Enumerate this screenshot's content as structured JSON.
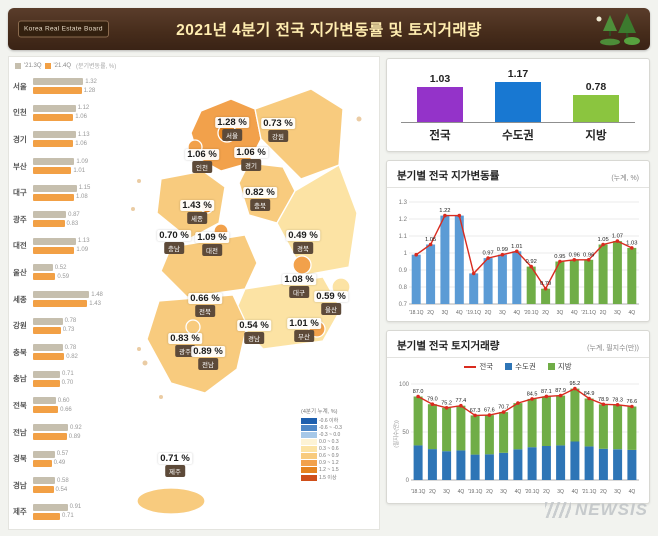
{
  "header": {
    "badge": "Korea Real Estate Board",
    "title": "2021년 4분기 전국 지가변동률 및 토지거래량"
  },
  "watermark": "NEWSIS",
  "chart_data": [
    {
      "id": "regional_quarterly_bars",
      "type": "bar",
      "orientation": "horizontal",
      "unit_note": "(분기변동률, %)",
      "categories": [
        "서울",
        "인천",
        "경기",
        "부산",
        "대구",
        "광주",
        "대전",
        "울산",
        "세종",
        "강원",
        "충북",
        "충남",
        "전북",
        "전남",
        "경북",
        "경남",
        "제주"
      ],
      "series": [
        {
          "name": "'21.3Q",
          "color": "#c6bfae",
          "values": [
            1.32,
            1.12,
            1.13,
            1.09,
            1.15,
            0.87,
            1.13,
            0.52,
            1.48,
            0.78,
            0.78,
            0.71,
            0.6,
            0.92,
            0.57,
            0.58,
            0.91
          ]
        },
        {
          "name": "'21.4Q",
          "color": "#f2a045",
          "values": [
            1.28,
            1.06,
            1.06,
            1.01,
            1.08,
            0.83,
            1.09,
            0.59,
            1.43,
            0.73,
            0.82,
            0.7,
            0.66,
            0.89,
            0.49,
            0.54,
            0.71
          ]
        }
      ]
    },
    {
      "id": "korea_choropleth",
      "type": "heatmap",
      "title": "(4분기 누계, %)",
      "regions": [
        {
          "name": "서울",
          "value": 1.28,
          "color": "#e5831f"
        },
        {
          "name": "인천",
          "value": 1.06,
          "color": "#f2a14b"
        },
        {
          "name": "경기",
          "value": 1.06,
          "color": "#f2a14b"
        },
        {
          "name": "부산",
          "value": 1.01,
          "color": "#f2a14b"
        },
        {
          "name": "대구",
          "value": 1.08,
          "color": "#f2a14b"
        },
        {
          "name": "광주",
          "value": 0.83,
          "color": "#f8cb7e"
        },
        {
          "name": "대전",
          "value": 1.09,
          "color": "#f2a14b"
        },
        {
          "name": "울산",
          "value": 0.59,
          "color": "#fce3a4"
        },
        {
          "name": "세종",
          "value": 1.43,
          "color": "#e5831f"
        },
        {
          "name": "강원",
          "value": 0.73,
          "color": "#f8cb7e"
        },
        {
          "name": "충북",
          "value": 0.82,
          "color": "#f8cb7e"
        },
        {
          "name": "충남",
          "value": 0.7,
          "color": "#f8cb7e"
        },
        {
          "name": "전북",
          "value": 0.66,
          "color": "#f8cb7e"
        },
        {
          "name": "전남",
          "value": 0.89,
          "color": "#f8cb7e"
        },
        {
          "name": "경북",
          "value": 0.49,
          "color": "#fce3a4"
        },
        {
          "name": "경남",
          "value": 0.54,
          "color": "#fce3a4"
        },
        {
          "name": "제주",
          "value": 0.71,
          "color": "#f8cb7e"
        }
      ],
      "legend_items": [
        {
          "label": "-0.6 이하",
          "color": "#1d5fae"
        },
        {
          "label": "-0.6 ~ -0.3",
          "color": "#4d87c7"
        },
        {
          "label": "-0.3 ~ 0.0",
          "color": "#a6c8e8"
        },
        {
          "label": "0.0 ~ 0.3",
          "color": "#fdf3d5"
        },
        {
          "label": "0.3 ~ 0.6",
          "color": "#fce3a4"
        },
        {
          "label": "0.6 ~ 0.9",
          "color": "#f8cb7e"
        },
        {
          "label": "0.9 ~ 1.2",
          "color": "#f2a14b"
        },
        {
          "label": "1.2 ~ 1.5",
          "color": "#e5831f"
        },
        {
          "label": "1.5 이상",
          "color": "#cf4f1a"
        }
      ]
    },
    {
      "id": "summary_bars",
      "type": "bar",
      "categories": [
        "전국",
        "수도권",
        "지방"
      ],
      "values": [
        1.03,
        1.17,
        0.78
      ],
      "colors": [
        "#9433c9",
        "#1878d2",
        "#8bc53f"
      ]
    },
    {
      "id": "quarterly_rate",
      "type": "line",
      "title": "분기별 전국 지가변동률",
      "unit": "(누계, %)",
      "x": [
        "'18.1Q",
        "2Q",
        "3Q",
        "4Q",
        "'19.1Q",
        "2Q",
        "3Q",
        "4Q",
        "'20.1Q",
        "2Q",
        "3Q",
        "4Q",
        "'21.1Q",
        "2Q",
        "3Q",
        "4Q"
      ],
      "values": [
        0.99,
        1.05,
        1.22,
        1.22,
        0.88,
        0.97,
        0.99,
        1.01,
        0.92,
        0.79,
        0.95,
        0.96,
        0.96,
        1.05,
        1.07,
        1.03
      ],
      "point_labels": [
        "",
        "1.05",
        "1.22",
        "",
        "",
        "0.97",
        "0.99",
        "1.01",
        "0.92",
        "0.79",
        "0.95",
        "0.96",
        "0.96",
        "1.05",
        "1.07",
        "1.03"
      ],
      "line_color": "#d92b1f",
      "bar_colors": [
        "#5b9bd5",
        "#5b9bd5",
        "#5b9bd5",
        "#5b9bd5",
        "#5b9bd5",
        "#5b9bd5",
        "#5b9bd5",
        "#5b9bd5",
        "#70ad47",
        "#70ad47",
        "#70ad47",
        "#70ad47",
        "#70ad47",
        "#70ad47",
        "#70ad47",
        "#70ad47"
      ],
      "ylim": [
        0.7,
        1.3
      ],
      "yticks": [
        1.3,
        1.2,
        1.1,
        1,
        0.9,
        0.8,
        0.7
      ]
    },
    {
      "id": "land_transactions",
      "type": "bar",
      "title": "분기별 전국 토지거래량",
      "unit": "(누계, 필지수(만))",
      "y_axis_label": "(필지수(만))",
      "x": [
        "'18.1Q",
        "2Q",
        "3Q",
        "4Q",
        "'19.1Q",
        "2Q",
        "3Q",
        "4Q",
        "'20.1Q",
        "2Q",
        "3Q",
        "4Q",
        "'21.1Q",
        "2Q",
        "3Q",
        "4Q"
      ],
      "series": [
        {
          "name": "전국",
          "type": "line",
          "color": "#d92b1f",
          "values": [
            87.0,
            79.0,
            75.2,
            77.4,
            67.3,
            67.6,
            70.7,
            80.1,
            84.5,
            87.1,
            87.9,
            95.2,
            84.9,
            78.9,
            78.3,
            76.6
          ]
        },
        {
          "name": "수도권",
          "type": "bar",
          "color": "#2e75b6",
          "values": [
            36.1,
            32.2,
            30.0,
            30.8,
            26.5,
            26.8,
            28.3,
            32.0,
            34.2,
            35.4,
            36.0,
            40.1,
            35.0,
            32.5,
            32.0,
            31.4
          ]
        },
        {
          "name": "지방",
          "type": "bar",
          "color": "#70ad47",
          "values": [
            50.9,
            46.8,
            45.2,
            46.6,
            40.8,
            40.8,
            42.4,
            48.1,
            50.3,
            51.7,
            51.9,
            55.1,
            49.9,
            46.4,
            46.3,
            45.2
          ]
        }
      ],
      "point_labels": [
        "87.0",
        "79.0",
        "75.2",
        "77.4",
        "67.3",
        "67.6",
        "70.7",
        "",
        "84.5",
        "87.1",
        "87.9",
        "95.2",
        "84.9",
        "78.9",
        "78.3",
        "76.6"
      ],
      "ylim": [
        0,
        100
      ],
      "yticks": [
        100,
        50,
        0
      ]
    }
  ]
}
